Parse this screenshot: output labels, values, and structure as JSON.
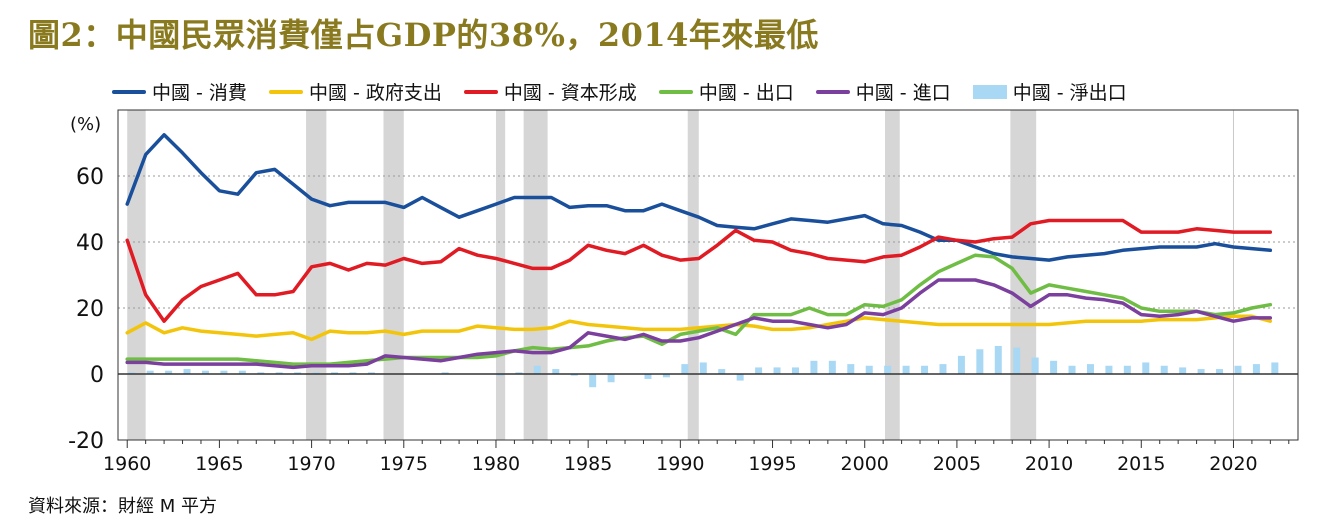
{
  "title": "圖2：中國民眾消費僅占GDP的38%，2014年來最低",
  "source": "資料來源：財經 M 平方",
  "chart_data": {
    "type": "line",
    "ylabel": "(%)",
    "ylim": [
      -20,
      80
    ],
    "yticks": [
      -20,
      0,
      20,
      40,
      60
    ],
    "xlim": [
      1959.5,
      2023.5
    ],
    "xticks": [
      1960,
      1965,
      1970,
      1975,
      1980,
      1985,
      1990,
      1995,
      2000,
      2005,
      2010,
      2015,
      2020
    ],
    "recessions": [
      [
        1960,
        1961
      ],
      [
        1969.7,
        1970.8
      ],
      [
        1973.9,
        1975
      ],
      [
        1980,
        1980.5
      ],
      [
        1981.5,
        1982.8
      ],
      [
        1990.4,
        1991
      ],
      [
        2001.1,
        2001.9
      ],
      [
        2007.9,
        2009.3
      ]
    ],
    "x": [
      1960,
      1961,
      1962,
      1963,
      1964,
      1965,
      1966,
      1967,
      1968,
      1969,
      1970,
      1971,
      1972,
      1973,
      1974,
      1975,
      1976,
      1977,
      1978,
      1979,
      1980,
      1981,
      1982,
      1983,
      1984,
      1985,
      1986,
      1987,
      1988,
      1989,
      1990,
      1991,
      1992,
      1993,
      1994,
      1995,
      1996,
      1997,
      1998,
      1999,
      2000,
      2001,
      2002,
      2003,
      2004,
      2005,
      2006,
      2007,
      2008,
      2009,
      2010,
      2011,
      2012,
      2013,
      2014,
      2015,
      2016,
      2017,
      2018,
      2019,
      2020,
      2021,
      2022
    ],
    "series": [
      {
        "name": "中國 - 消費",
        "kind": "line",
        "color": "#1a4f9c",
        "values": [
          51.5,
          66.5,
          72.5,
          67,
          61,
          55.5,
          54.5,
          61,
          62,
          57.5,
          53,
          51,
          52,
          52,
          52,
          50.5,
          53.5,
          50.5,
          47.5,
          49.5,
          51.5,
          53.5,
          53.5,
          53.5,
          50.5,
          51,
          51,
          49.5,
          49.5,
          51.5,
          49.5,
          47.5,
          45,
          44.5,
          44,
          45.5,
          47,
          46.5,
          46,
          47,
          48,
          45.5,
          45,
          43,
          40.5,
          40.5,
          38.5,
          36.5,
          35.5,
          35,
          34.5,
          35.5,
          36,
          36.5,
          37.5,
          38,
          38.5,
          38.5,
          38.5,
          39.5,
          38.5,
          38,
          37.5
        ]
      },
      {
        "name": "中國 - 政府支出",
        "kind": "line",
        "color": "#f2c50c",
        "values": [
          12.5,
          15.5,
          12.5,
          14,
          13,
          12.5,
          12,
          11.5,
          12,
          12.5,
          10.5,
          13,
          12.5,
          12.5,
          13,
          12,
          13,
          13,
          13,
          14.5,
          14,
          13.5,
          13.5,
          14,
          16,
          15,
          14.5,
          14,
          13.5,
          13.5,
          13.5,
          14,
          14.5,
          15,
          14.5,
          13.5,
          13.5,
          14,
          15,
          16,
          17,
          16.5,
          16,
          15.5,
          15,
          15,
          15,
          15,
          15,
          15,
          15,
          15.5,
          16,
          16,
          16,
          16,
          16.5,
          16.5,
          16.5,
          17,
          17.5,
          17.5,
          16
        ]
      },
      {
        "name": "中國 - 資本形成",
        "kind": "line",
        "color": "#e01b24",
        "values": [
          40.5,
          24,
          16,
          22.5,
          26.5,
          28.5,
          30.5,
          24,
          24,
          25,
          32.5,
          33.5,
          31.5,
          33.5,
          33,
          35,
          33.5,
          34,
          38,
          36,
          35,
          33.5,
          32,
          32,
          34.5,
          39,
          37.5,
          36.5,
          39,
          36,
          34.5,
          35,
          39,
          43.5,
          40.5,
          40,
          37.5,
          36.5,
          35,
          34.5,
          34,
          35.5,
          36,
          38.5,
          41.5,
          40.5,
          40,
          41,
          41.5,
          45.5,
          46.5,
          46.5,
          46.5,
          46.5,
          46.5,
          43,
          43,
          43,
          44,
          43.5,
          43,
          43,
          43
        ]
      },
      {
        "name": "中國 - 出口",
        "kind": "line",
        "color": "#6fbd44",
        "values": [
          4.5,
          4.5,
          4.5,
          4.5,
          4.5,
          4.5,
          4.5,
          4,
          3.5,
          3,
          3,
          3,
          3.5,
          4,
          4.5,
          5,
          5,
          5,
          5,
          5,
          5.5,
          7,
          8,
          7.5,
          8,
          8.5,
          10,
          11,
          11.5,
          9,
          12,
          13,
          14,
          12,
          18,
          18,
          18,
          20,
          18,
          18,
          21,
          20.5,
          22.5,
          27,
          31,
          33.5,
          36,
          35.5,
          32,
          24.5,
          27,
          26,
          25,
          24,
          23,
          20,
          19,
          19,
          19,
          18,
          18.5,
          20,
          21
        ]
      },
      {
        "name": "中國 - 進口",
        "kind": "line",
        "color": "#7b3f9e",
        "values": [
          3.5,
          3.5,
          3,
          3,
          3,
          3,
          3,
          3,
          2.5,
          2,
          2.5,
          2.5,
          2.5,
          3,
          5.5,
          5,
          4.5,
          4,
          5,
          6,
          6.5,
          7,
          6.5,
          6.5,
          8,
          12.5,
          11.5,
          10.5,
          12,
          10,
          10,
          11,
          13,
          15,
          17,
          16,
          16,
          15,
          14,
          15,
          18.5,
          18,
          20,
          24.5,
          28.5,
          28.5,
          28.5,
          27,
          24.5,
          20.5,
          24,
          24,
          23,
          22.5,
          21.5,
          18,
          17.5,
          18,
          19,
          17.5,
          16,
          17,
          17
        ]
      },
      {
        "name": "中國 - 淨出口",
        "kind": "bar",
        "color": "#a9d8f5",
        "values": [
          0.5,
          1,
          1,
          1.5,
          1,
          1,
          1,
          0.5,
          0.5,
          0.5,
          0.5,
          0.5,
          0.5,
          0.5,
          0,
          0,
          0,
          0.5,
          0,
          0,
          -0.5,
          0.5,
          2.5,
          1.5,
          -0.5,
          -4,
          -2.5,
          0,
          -1.5,
          -1,
          3,
          3.5,
          1.5,
          -2,
          2,
          2,
          2,
          4,
          4,
          3,
          2.5,
          2.5,
          2.5,
          2.5,
          3,
          5.5,
          7.5,
          8.5,
          8,
          5,
          4,
          2.5,
          3,
          2.5,
          2.5,
          3.5,
          2.5,
          2,
          1.5,
          1.5,
          2.5,
          3,
          3.5
        ]
      }
    ]
  }
}
